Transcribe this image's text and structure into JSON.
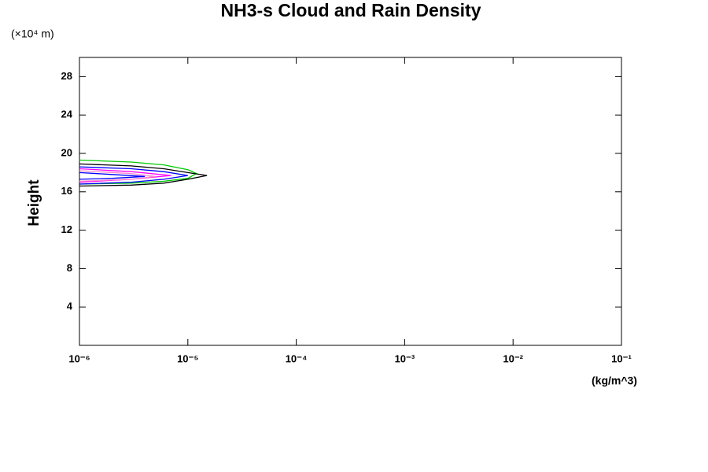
{
  "chart_data": {
    "type": "line",
    "title": "NH3-s Cloud and Rain Density",
    "y_unit_label": "(×10⁴ m)",
    "x_unit_label": "(kg/m^3)",
    "ylabel": "Height",
    "xscale": "log",
    "xlim": [
      1e-06,
      0.1
    ],
    "ylim": [
      0,
      30
    ],
    "xticks": [
      {
        "value": 1e-06,
        "label": "10⁻⁶"
      },
      {
        "value": 1e-05,
        "label": "10⁻⁵"
      },
      {
        "value": 0.0001,
        "label": "10⁻⁴"
      },
      {
        "value": 0.001,
        "label": "10⁻³"
      },
      {
        "value": 0.01,
        "label": "10⁻²"
      },
      {
        "value": 0.1,
        "label": "10⁻¹"
      }
    ],
    "yticks": [
      4,
      8,
      12,
      16,
      20,
      24,
      28
    ],
    "series": [
      {
        "color": "#00c800",
        "x": [
          1e-06,
          3e-06,
          6e-06,
          1e-05,
          1.2e-05,
          1e-05,
          6e-06,
          3e-06,
          1e-06
        ],
        "values": [
          19.3,
          19.1,
          18.8,
          18.3,
          17.9,
          17.4,
          17.1,
          16.9,
          16.8
        ]
      },
      {
        "color": "#000000",
        "x": [
          1e-06,
          3e-06,
          6e-06,
          1e-05,
          1.5e-05,
          1e-05,
          6e-06,
          3e-06,
          1e-06
        ],
        "values": [
          18.9,
          18.7,
          18.4,
          18.0,
          17.7,
          17.3,
          16.9,
          16.7,
          16.6
        ]
      },
      {
        "color": "#0000ff",
        "x": [
          1e-06,
          3e-06,
          6e-06,
          1e-05,
          6e-06,
          3e-06,
          1e-06
        ],
        "values": [
          18.6,
          18.4,
          18.1,
          17.7,
          17.3,
          17.0,
          16.8
        ]
      },
      {
        "color": "#ff00ff",
        "x": [
          1e-06,
          3e-06,
          7e-06,
          3e-06,
          1e-06
        ],
        "values": [
          18.4,
          18.1,
          17.7,
          17.3,
          17.0
        ]
      },
      {
        "color": "#ff88cc",
        "x": [
          1e-06,
          3e-06,
          5e-06,
          3e-06,
          1e-06
        ],
        "values": [
          18.2,
          17.9,
          17.6,
          17.3,
          17.1
        ]
      },
      {
        "color": "#0000ff",
        "x": [
          1e-06,
          2e-06,
          4e-06,
          2e-06,
          1e-06
        ],
        "values": [
          18.0,
          17.8,
          17.6,
          17.4,
          17.3
        ]
      }
    ]
  }
}
